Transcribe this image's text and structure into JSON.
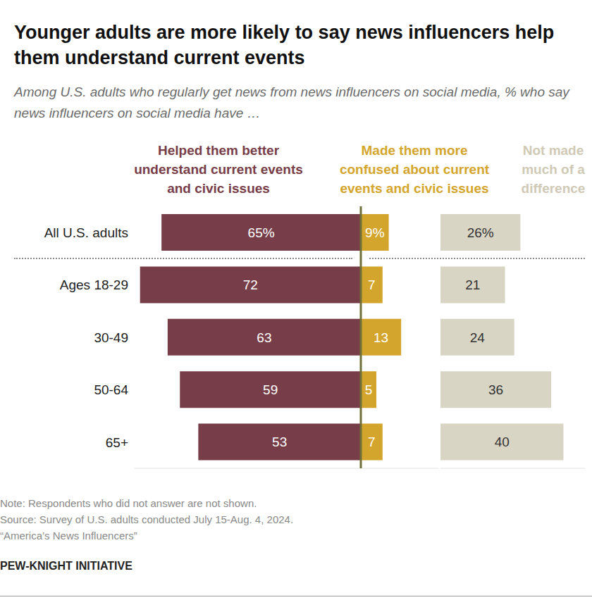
{
  "chart_data": {
    "type": "bar",
    "orientation": "horizontal",
    "title": "Younger adults are more likely to say news influencers help them understand current events",
    "subtitle": "Among U.S. adults who regularly get news from news influencers on social media, % who say news influencers on social media have …",
    "categories": [
      "All U.S. adults",
      "Ages 18-29",
      "30-49",
      "50-64",
      "65+"
    ],
    "series": [
      {
        "name": "Helped them better understand current events and civic issues",
        "color": "#773d48",
        "values": [
          65,
          72,
          63,
          59,
          53
        ],
        "value_labels": [
          "65%",
          "72",
          "63",
          "59",
          "53"
        ],
        "xlim": [
          0,
          74
        ]
      },
      {
        "name": "Made them more confused about current events and civic issues",
        "color": "#d4a52c",
        "values": [
          9,
          7,
          13,
          5,
          7
        ],
        "value_labels": [
          "9%",
          "7",
          "13",
          "5",
          "7"
        ],
        "xlim": [
          0,
          25
        ]
      },
      {
        "name": "Not made much of a difference",
        "color": "#d9d5c5",
        "values": [
          26,
          21,
          24,
          36,
          40
        ],
        "value_labels": [
          "26%",
          "21",
          "24",
          "36",
          "40"
        ],
        "xlim": [
          0,
          47
        ]
      }
    ],
    "data_labels": true,
    "tick_labels": "y",
    "legend": "top",
    "notes": [
      "Note: Respondents who did not answer are not shown.",
      "Source: Survey of U.S. adults conducted July 15-Aug. 4, 2024.",
      "“America’s News Influencers”"
    ],
    "credit": "PEW-KNIGHT INITIATIVE"
  }
}
